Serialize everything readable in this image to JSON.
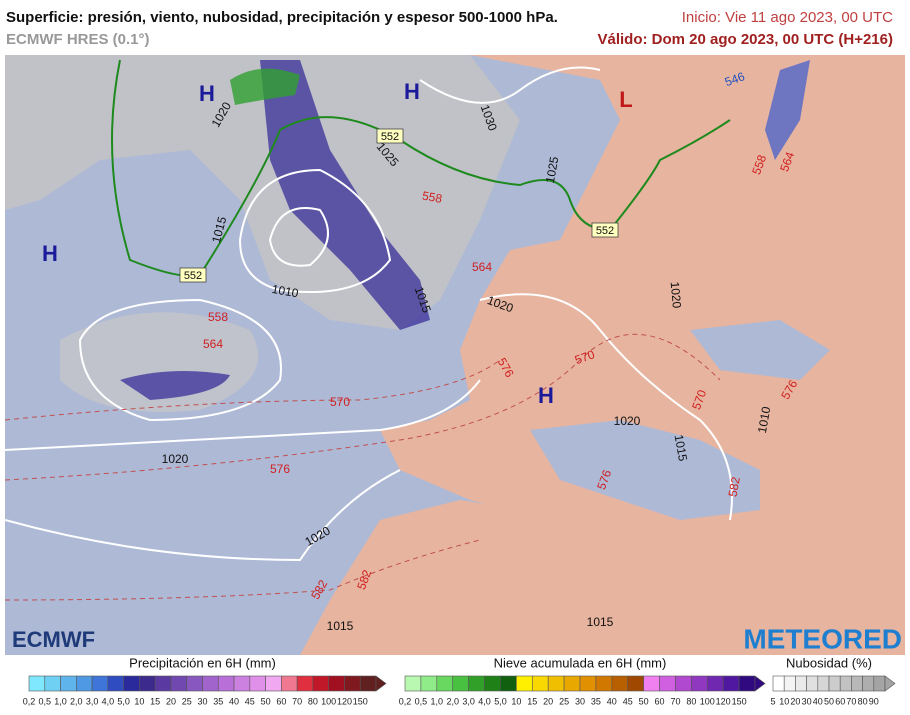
{
  "header": {
    "title": "Superficie: presión, viento, nubosidad, precipitación y espesor 500-1000 hPa.",
    "model": "ECMWF HRES (0.1°)",
    "init": "Inicio: Vie 11 ago 2023, 00 UTC",
    "valid": "Válido: Dom 20 ago 2023, 00 UTC (H+216)"
  },
  "map": {
    "pressure_centers": [
      "H",
      "H",
      "L",
      "H",
      "H"
    ],
    "isobar_labels": [
      "1020",
      "1030",
      "1025",
      "1025",
      "1015",
      "1010",
      "1015",
      "1020",
      "1020",
      "1020",
      "1020",
      "1020",
      "1015",
      "1015",
      "1015",
      "1010"
    ],
    "thickness_labels": [
      "558",
      "564",
      "558",
      "564",
      "570",
      "576",
      "576",
      "570",
      "570",
      "576",
      "576",
      "582",
      "582",
      "582",
      "558",
      "564",
      "546"
    ],
    "boxed_labels": [
      "552",
      "552",
      "552"
    ],
    "logos": [
      "ECMWF",
      "METEORED"
    ]
  },
  "legends": [
    {
      "title": "Precipitación en 6H (mm)",
      "ticks": [
        "0,2",
        "0,5",
        "1,0",
        "2,0",
        "3,0",
        "4,0",
        "5,0",
        "10",
        "15",
        "20",
        "25",
        "30",
        "35",
        "40",
        "45",
        "50",
        "60",
        "70",
        "80",
        "100",
        "120",
        "150"
      ],
      "colors": [
        "#7fe8ff",
        "#6fd0f4",
        "#5fb4ec",
        "#4f98e4",
        "#3f74d8",
        "#2f4cc0",
        "#2a2a9c",
        "#3c2a8c",
        "#5a3aa0",
        "#7048b0",
        "#8858c0",
        "#a064cc",
        "#b870d8",
        "#cc80e0",
        "#e090e8",
        "#f0a8f0",
        "#f07890",
        "#e03040",
        "#c01828",
        "#a01020",
        "#801820",
        "#602020"
      ]
    },
    {
      "title": "Nieve acumulada en 6H (mm)",
      "ticks": [
        "0,2",
        "0,5",
        "1,0",
        "2,0",
        "3,0",
        "4,0",
        "5,0",
        "10",
        "15",
        "20",
        "25",
        "30",
        "35",
        "40",
        "45",
        "50",
        "60",
        "70",
        "80",
        "100",
        "120",
        "150"
      ],
      "colors": [
        "#b8f8b0",
        "#90ec88",
        "#68d860",
        "#48c040",
        "#30a028",
        "#208018",
        "#106010",
        "#fff000",
        "#f8d800",
        "#f0c000",
        "#e8a800",
        "#e09000",
        "#d07800",
        "#b86000",
        "#a04800",
        "#f080f0",
        "#d060e0",
        "#b048d0",
        "#9038c0",
        "#7028b0",
        "#5018a0",
        "#300880"
      ]
    },
    {
      "title": "Nubosidad (%)",
      "ticks": [
        "5",
        "10",
        "20",
        "30",
        "40",
        "50",
        "60",
        "70",
        "80",
        "90"
      ],
      "colors": [
        "#ffffff",
        "#f4f4f4",
        "#eaeaea",
        "#e0e0e0",
        "#d6d6d6",
        "#cccccc",
        "#c2c2c2",
        "#b8b8b8",
        "#aeaeae",
        "#a4a4a4"
      ]
    }
  ]
}
